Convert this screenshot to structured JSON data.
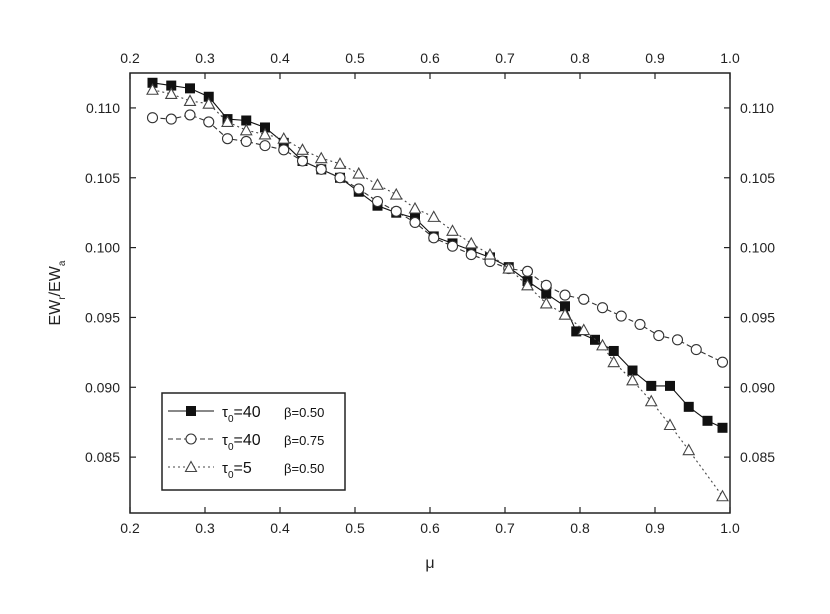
{
  "chart_data": {
    "type": "line",
    "xlabel": "μ",
    "ylabel": "EW",
    "ylabel_sub1": "r",
    "ylabel_mid": "/EW",
    "ylabel_sub2": "a",
    "xlim": [
      0.2,
      1.0
    ],
    "ylim": [
      0.081,
      0.1125
    ],
    "x_ticks": [
      0.2,
      0.3,
      0.4,
      0.5,
      0.6,
      0.7,
      0.8,
      0.9,
      1.0
    ],
    "x_tick_labels": [
      "0.2",
      "0.3",
      "0.4",
      "0.5",
      "0.6",
      "0.7",
      "0.8",
      "0.9",
      "1.0"
    ],
    "y_ticks": [
      0.085,
      0.09,
      0.095,
      0.1,
      0.105,
      0.11
    ],
    "y_tick_labels": [
      "0.085",
      "0.090",
      "0.095",
      "0.100",
      "0.105",
      "0.110"
    ],
    "grid": false,
    "legend_position": "bottom-left",
    "series": [
      {
        "marker": "filled-square",
        "line": "solid",
        "color": "#111111",
        "legend": {
          "tau": "τ",
          "sub": "0",
          "value": "=40",
          "beta": "β=0.50"
        },
        "x": [
          0.23,
          0.255,
          0.28,
          0.305,
          0.33,
          0.355,
          0.38,
          0.405,
          0.43,
          0.455,
          0.48,
          0.505,
          0.53,
          0.555,
          0.58,
          0.605,
          0.63,
          0.655,
          0.68,
          0.705,
          0.73,
          0.755,
          0.78,
          0.795,
          0.82,
          0.845,
          0.87,
          0.895,
          0.92,
          0.945,
          0.97,
          0.99
        ],
        "y": [
          0.1118,
          0.1116,
          0.1114,
          0.1108,
          0.1092,
          0.1091,
          0.1086,
          0.1075,
          0.1062,
          0.1056,
          0.105,
          0.104,
          0.103,
          0.1025,
          0.1021,
          0.1008,
          0.1003,
          0.0998,
          0.0993,
          0.0986,
          0.0976,
          0.0967,
          0.0958,
          0.094,
          0.0934,
          0.0926,
          0.0912,
          0.0901,
          0.0901,
          0.0886,
          0.0876,
          0.0871
        ]
      },
      {
        "marker": "open-circle",
        "line": "dashed",
        "color": "#333333",
        "legend": {
          "tau": "τ",
          "sub": "0",
          "value": "=40",
          "beta": "β=0.75"
        },
        "x": [
          0.23,
          0.255,
          0.28,
          0.305,
          0.33,
          0.355,
          0.38,
          0.405,
          0.43,
          0.455,
          0.48,
          0.505,
          0.53,
          0.555,
          0.58,
          0.605,
          0.63,
          0.655,
          0.68,
          0.705,
          0.73,
          0.755,
          0.78,
          0.805,
          0.83,
          0.855,
          0.88,
          0.905,
          0.93,
          0.955,
          0.99
        ],
        "y": [
          0.1093,
          0.1092,
          0.1095,
          0.109,
          0.1078,
          0.1076,
          0.1073,
          0.107,
          0.1062,
          0.1056,
          0.105,
          0.1042,
          0.1033,
          0.1026,
          0.1018,
          0.1007,
          0.1001,
          0.0995,
          0.099,
          0.0985,
          0.0983,
          0.0973,
          0.0966,
          0.0963,
          0.0957,
          0.0951,
          0.0945,
          0.0937,
          0.0934,
          0.0927,
          0.0918
        ]
      },
      {
        "marker": "open-triangle",
        "line": "dotted",
        "color": "#444444",
        "legend": {
          "tau": "τ",
          "sub": "0",
          "value": "=5",
          "beta": "β=0.50"
        },
        "x": [
          0.23,
          0.255,
          0.28,
          0.305,
          0.33,
          0.355,
          0.38,
          0.405,
          0.43,
          0.455,
          0.48,
          0.505,
          0.53,
          0.555,
          0.58,
          0.605,
          0.63,
          0.655,
          0.68,
          0.705,
          0.73,
          0.755,
          0.78,
          0.805,
          0.83,
          0.845,
          0.87,
          0.895,
          0.92,
          0.945,
          0.99
        ],
        "y": [
          0.1113,
          0.111,
          0.1105,
          0.1103,
          0.109,
          0.1084,
          0.1081,
          0.1078,
          0.107,
          0.1064,
          0.106,
          0.1053,
          0.1045,
          0.1038,
          0.1028,
          0.1022,
          0.1012,
          0.1003,
          0.0995,
          0.0985,
          0.0973,
          0.096,
          0.0952,
          0.0941,
          0.093,
          0.0918,
          0.0905,
          0.089,
          0.0873,
          0.0855,
          0.0822
        ]
      }
    ]
  }
}
